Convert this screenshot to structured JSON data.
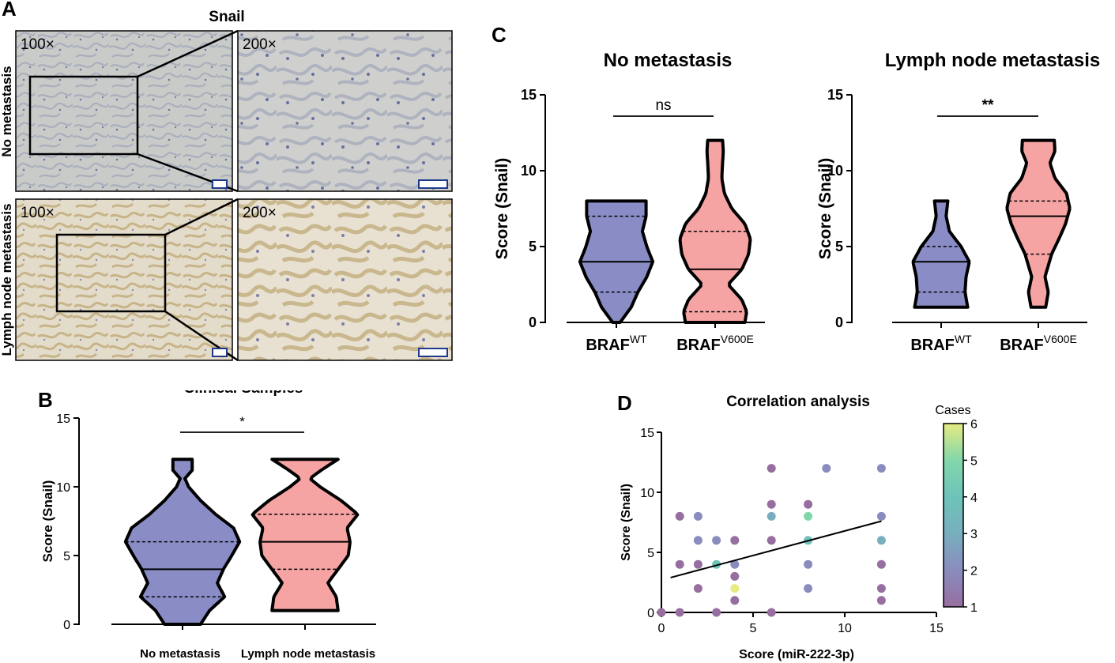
{
  "panel_letters": {
    "a": "A",
    "b": "B",
    "c": "C",
    "d": "D"
  },
  "panel_a": {
    "title": "Snail",
    "row_labels": [
      "No metastasis",
      "Lymph node metastasis"
    ],
    "mag_low": "100×",
    "mag_high": "200×"
  },
  "colors": {
    "wt": "#8a8cc6",
    "v600e": "#f5a3a3",
    "stroke": "#000000"
  },
  "chart_data": [
    {
      "id": "B",
      "type": "violin",
      "title": "Clinical Samples",
      "ylabel": "Score (Snail)",
      "xlabel": "",
      "ylim": [
        0,
        15
      ],
      "yticks": [
        0,
        5,
        10,
        15
      ],
      "categories": [
        "No metastasis",
        "Lymph node metastasis"
      ],
      "series": [
        {
          "name": "No metastasis",
          "min": 0,
          "q1": 2,
          "median": 4,
          "q3": 6,
          "max": 12,
          "color": "#8a8cc6",
          "profile": [
            [
              0,
              0.3
            ],
            [
              1,
              0.45
            ],
            [
              2,
              0.7
            ],
            [
              3,
              0.58
            ],
            [
              4,
              0.68
            ],
            [
              5,
              0.82
            ],
            [
              6,
              0.95
            ],
            [
              7,
              0.85
            ],
            [
              8,
              0.55
            ],
            [
              9,
              0.3
            ],
            [
              10,
              0.1
            ],
            [
              10.6,
              0.04
            ],
            [
              11.2,
              0.16
            ],
            [
              12,
              0.16
            ]
          ]
        },
        {
          "name": "Lymph node metastasis",
          "min": 1,
          "q1": 4,
          "median": 6,
          "q3": 8,
          "max": 12,
          "color": "#f5a3a3",
          "profile": [
            [
              1,
              0.55
            ],
            [
              2,
              0.52
            ],
            [
              3,
              0.38
            ],
            [
              4,
              0.55
            ],
            [
              5,
              0.72
            ],
            [
              6,
              0.75
            ],
            [
              7,
              0.7
            ],
            [
              8,
              0.88
            ],
            [
              9,
              0.6
            ],
            [
              10,
              0.25
            ],
            [
              10.6,
              0.08
            ],
            [
              11.3,
              0.3
            ],
            [
              12,
              0.55
            ]
          ]
        }
      ],
      "annotation": "*"
    },
    {
      "id": "C1",
      "type": "violin",
      "title": "No metastasis",
      "ylabel": "Score (Snail)",
      "ylim": [
        0,
        15
      ],
      "yticks": [
        0,
        5,
        10,
        15
      ],
      "categories": [
        {
          "base": "BRAF",
          "sup": "WT"
        },
        {
          "base": "BRAF",
          "sup": "V600E"
        }
      ],
      "series": [
        {
          "name": "BRAF WT",
          "min": 0,
          "q1": 2,
          "median": 4,
          "q3": 7,
          "max": 8,
          "color": "#8a8cc6",
          "profile": [
            [
              0,
              0.1
            ],
            [
              1,
              0.4
            ],
            [
              2,
              0.58
            ],
            [
              3,
              0.82
            ],
            [
              4,
              0.98
            ],
            [
              5,
              0.82
            ],
            [
              6,
              0.7
            ],
            [
              7,
              0.8
            ],
            [
              8,
              0.8
            ]
          ]
        },
        {
          "name": "BRAF V600E",
          "min": 0,
          "q1": 0.7,
          "median": 3.5,
          "q3": 6,
          "max": 12,
          "color": "#f5a3a3",
          "profile": [
            [
              0,
              0.8
            ],
            [
              0.7,
              0.85
            ],
            [
              1.5,
              0.72
            ],
            [
              2.5,
              0.35
            ],
            [
              3.5,
              0.72
            ],
            [
              4.5,
              0.9
            ],
            [
              5.5,
              0.95
            ],
            [
              6.5,
              0.8
            ],
            [
              7.5,
              0.45
            ],
            [
              8.5,
              0.25
            ],
            [
              9.5,
              0.18
            ],
            [
              10.5,
              0.2
            ],
            [
              11.3,
              0.22
            ],
            [
              12,
              0.2
            ]
          ]
        }
      ],
      "annotation": "ns"
    },
    {
      "id": "C2",
      "type": "violin",
      "title": "Lymph node metastasis",
      "ylabel": "Score (Snail)",
      "ylim": [
        0,
        15
      ],
      "yticks": [
        0,
        5,
        10,
        15
      ],
      "categories": [
        {
          "base": "BRAF",
          "sup": "WT"
        },
        {
          "base": "BRAF",
          "sup": "V600E"
        }
      ],
      "series": [
        {
          "name": "BRAF WT",
          "min": 1,
          "q1": 2,
          "median": 4,
          "q3": 5,
          "max": 8,
          "color": "#8a8cc6",
          "profile": [
            [
              1,
              0.8
            ],
            [
              2,
              0.72
            ],
            [
              3,
              0.75
            ],
            [
              4,
              0.85
            ],
            [
              5,
              0.6
            ],
            [
              6,
              0.25
            ],
            [
              7,
              0.15
            ],
            [
              8,
              0.2
            ]
          ]
        },
        {
          "name": "BRAF V600E",
          "min": 1,
          "q1": 4.5,
          "median": 7,
          "q3": 8,
          "max": 12,
          "color": "#f5a3a3",
          "profile": [
            [
              1,
              0.22
            ],
            [
              2,
              0.3
            ],
            [
              3,
              0.2
            ],
            [
              4.5,
              0.4
            ],
            [
              5.5,
              0.62
            ],
            [
              6.5,
              0.82
            ],
            [
              7.5,
              0.95
            ],
            [
              8.5,
              0.85
            ],
            [
              9.5,
              0.5
            ],
            [
              10.5,
              0.35
            ],
            [
              11.3,
              0.5
            ],
            [
              12,
              0.48
            ]
          ]
        }
      ],
      "annotation": "**"
    },
    {
      "id": "D",
      "type": "scatter",
      "title": "Correlation analysis",
      "xlabel": "Score (miR-222-3p)",
      "ylabel": "Score (Snail)",
      "xlim": [
        0,
        15
      ],
      "ylim": [
        0,
        15
      ],
      "xticks": [
        0,
        5,
        10,
        15
      ],
      "yticks": [
        0,
        5,
        10,
        15
      ],
      "colorbar": {
        "label": "Cases",
        "min": 1,
        "max": 6,
        "ticks": [
          1,
          2,
          3,
          4,
          5,
          6
        ]
      },
      "points": [
        {
          "x": 0,
          "y": 0,
          "cases": 1
        },
        {
          "x": 1,
          "y": 0,
          "cases": 1
        },
        {
          "x": 3,
          "y": 0,
          "cases": 1
        },
        {
          "x": 6,
          "y": 0,
          "cases": 1
        },
        {
          "x": 1,
          "y": 8,
          "cases": 1
        },
        {
          "x": 2,
          "y": 8,
          "cases": 2
        },
        {
          "x": 1,
          "y": 4,
          "cases": 1
        },
        {
          "x": 2,
          "y": 4,
          "cases": 1
        },
        {
          "x": 2,
          "y": 6,
          "cases": 2
        },
        {
          "x": 3,
          "y": 6,
          "cases": 2
        },
        {
          "x": 4,
          "y": 6,
          "cases": 1
        },
        {
          "x": 2,
          "y": 2,
          "cases": 1
        },
        {
          "x": 3,
          "y": 4,
          "cases": 4
        },
        {
          "x": 4,
          "y": 4,
          "cases": 2
        },
        {
          "x": 4,
          "y": 3,
          "cases": 1
        },
        {
          "x": 4,
          "y": 2,
          "cases": 6
        },
        {
          "x": 4,
          "y": 1,
          "cases": 1
        },
        {
          "x": 6,
          "y": 12,
          "cases": 1
        },
        {
          "x": 6,
          "y": 9,
          "cases": 1
        },
        {
          "x": 6,
          "y": 8,
          "cases": 3
        },
        {
          "x": 6,
          "y": 6,
          "cases": 1
        },
        {
          "x": 8,
          "y": 9,
          "cases": 1
        },
        {
          "x": 8,
          "y": 8,
          "cases": 5
        },
        {
          "x": 8,
          "y": 6,
          "cases": 4
        },
        {
          "x": 8,
          "y": 4,
          "cases": 2
        },
        {
          "x": 8,
          "y": 2,
          "cases": 2
        },
        {
          "x": 9,
          "y": 12,
          "cases": 2
        },
        {
          "x": 12,
          "y": 12,
          "cases": 2
        },
        {
          "x": 12,
          "y": 8,
          "cases": 2
        },
        {
          "x": 12,
          "y": 6,
          "cases": 3
        },
        {
          "x": 12,
          "y": 4,
          "cases": 1
        },
        {
          "x": 12,
          "y": 2,
          "cases": 1
        },
        {
          "x": 12,
          "y": 1,
          "cases": 1
        }
      ],
      "fit_line": [
        [
          0.5,
          2.9
        ],
        [
          12,
          7.6
        ]
      ]
    }
  ]
}
